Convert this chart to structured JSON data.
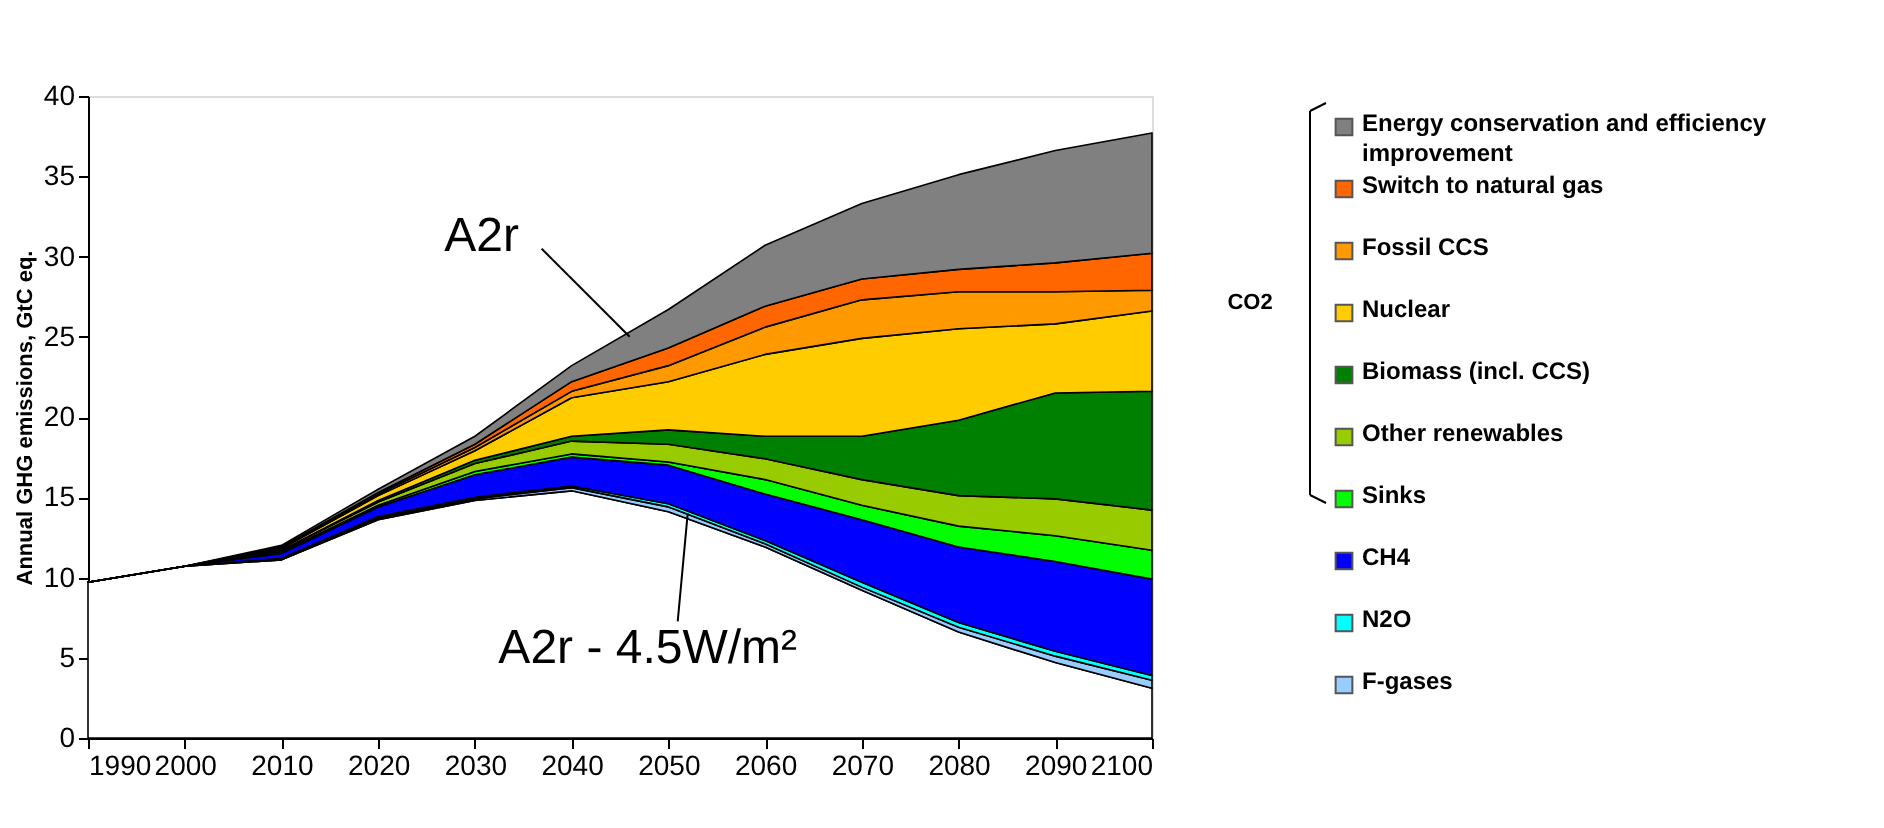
{
  "chart_data": {
    "type": "area",
    "stacked": true,
    "ylabel": "Annual GHG emissions, GtC eq.",
    "x": [
      1990,
      2000,
      2010,
      2020,
      2030,
      2040,
      2050,
      2060,
      2070,
      2080,
      2090,
      2100
    ],
    "xlim": [
      1990,
      2100
    ],
    "xticks": [
      1990,
      2000,
      2010,
      2020,
      2030,
      2040,
      2050,
      2060,
      2070,
      2080,
      2090,
      2100
    ],
    "ylim": [
      0,
      40
    ],
    "yticks": [
      0,
      5,
      10,
      15,
      20,
      25,
      30,
      35,
      40
    ],
    "grid": false,
    "legend": "right",
    "annotations": [
      {
        "text": "A2r",
        "x": 2046,
        "y": 25
      },
      {
        "text": "A2r - 4.5W/m²",
        "x": 2052,
        "y": 14
      },
      "CO2"
    ],
    "series": [
      {
        "color": "#ffffff",
        "values": [
          9.7,
          10.7,
          11.1,
          13.6,
          14.8,
          15.4,
          14.1,
          11.9,
          9.2,
          6.6,
          4.7,
          3.1
        ]
      },
      {
        "name": "F-gases",
        "color": "#99ccff",
        "values": [
          0,
          0,
          0,
          0.1,
          0.1,
          0.2,
          0.3,
          0.2,
          0.2,
          0.3,
          0.4,
          0.5
        ]
      },
      {
        "name": "N2O",
        "color": "#00ffff",
        "values": [
          0,
          0,
          0.1,
          0.1,
          0.1,
          0.1,
          0.2,
          0.2,
          0.3,
          0.3,
          0.3,
          0.3
        ]
      },
      {
        "name": "CH4",
        "color": "#0000ff",
        "values": [
          0,
          0,
          0.3,
          0.6,
          1.4,
          1.8,
          2.4,
          2.9,
          3.9,
          4.7,
          5.6,
          6.0
        ]
      },
      {
        "name": "Sinks",
        "color": "#00ff00",
        "values": [
          0,
          0,
          0.1,
          0.1,
          0.2,
          0.2,
          0.2,
          0.9,
          0.9,
          1.3,
          1.6,
          1.8
        ]
      },
      {
        "name": "Other renewables",
        "color": "#99cc00",
        "values": [
          0,
          0,
          0.1,
          0.2,
          0.5,
          0.8,
          1.1,
          1.3,
          1.6,
          1.9,
          2.3,
          2.5
        ]
      },
      {
        "name": "Biomass (incl. CCS)",
        "color": "#008000",
        "values": [
          0,
          0,
          0,
          0.1,
          0.2,
          0.3,
          0.9,
          1.4,
          2.7,
          4.7,
          6.6,
          7.4
        ]
      },
      {
        "name": "Nuclear",
        "color": "#ffcc00",
        "values": [
          0,
          0,
          0.1,
          0.3,
          0.6,
          2.4,
          3.0,
          5.1,
          6.1,
          5.7,
          4.3,
          5.0
        ]
      },
      {
        "name": "Fossil CCS",
        "color": "#ff9900",
        "values": [
          0,
          0,
          0.1,
          0.1,
          0.2,
          0.4,
          1.0,
          1.7,
          2.4,
          2.3,
          2.0,
          1.3
        ]
      },
      {
        "name": "Switch to natural gas",
        "color": "#ff6600",
        "values": [
          0,
          0,
          0,
          0.1,
          0.2,
          0.6,
          1.1,
          1.3,
          1.3,
          1.4,
          1.8,
          2.3
        ]
      },
      {
        "name": "Energy conservation and efficiency improvement",
        "color": "#808080",
        "values": [
          0,
          0,
          0.1,
          0.2,
          0.5,
          1.0,
          2.4,
          3.8,
          4.7,
          5.9,
          7.0,
          7.5
        ]
      }
    ]
  }
}
